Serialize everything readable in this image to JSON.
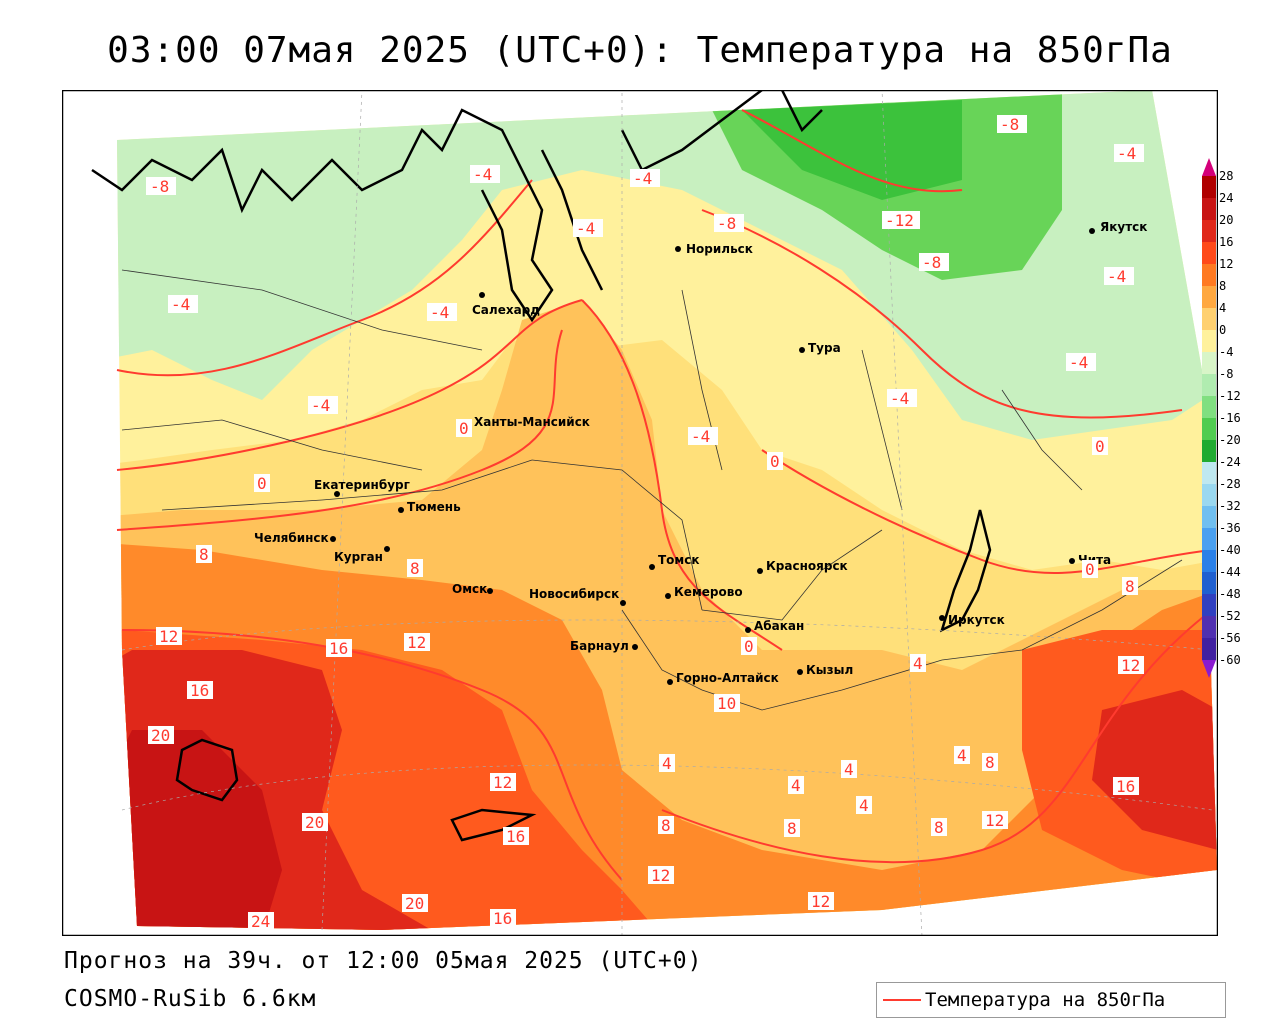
{
  "title": "03:00 07мая 2025 (UTC+0): Температура на 850гПа",
  "forecast_text": "Прогноз на 39ч. от 12:00 05мая 2025 (UTC+0)",
  "model_text": "COSMO-RuSib 6.6км",
  "legend": {
    "label": "Температура на 850гПа",
    "line_color": "#ff3b2f"
  },
  "colorbar": {
    "levels": [
      "28",
      "24",
      "20",
      "16",
      "12",
      "8",
      "4",
      "0",
      "-4",
      "-8",
      "-12",
      "-16",
      "-20",
      "-24",
      "-28",
      "-32",
      "-36",
      "-40",
      "-44",
      "-48",
      "-52",
      "-56",
      "-60"
    ],
    "top_arrow_color": "#d4007a",
    "bottom_arrow_color": "#8a1bd1"
  },
  "cities": [
    {
      "name": "Норильск"
    },
    {
      "name": "Якутск"
    },
    {
      "name": "Салехард"
    },
    {
      "name": "Тура"
    },
    {
      "name": "Ханты-Мансийск"
    },
    {
      "name": "Екатеринбург"
    },
    {
      "name": "Тюмень"
    },
    {
      "name": "Челябинск"
    },
    {
      "name": "Курган"
    },
    {
      "name": "Омск"
    },
    {
      "name": "Новосибирск"
    },
    {
      "name": "Томск"
    },
    {
      "name": "Кемерово"
    },
    {
      "name": "Красноярск"
    },
    {
      "name": "Абакан"
    },
    {
      "name": "Барнаул"
    },
    {
      "name": "Горно-Алтайск"
    },
    {
      "name": "Кызыл"
    },
    {
      "name": "Иркутск"
    },
    {
      "name": "Чита"
    }
  ],
  "contour_labels": [
    "-8",
    "-4",
    "-4",
    "-4",
    "-8",
    "-8",
    "-4",
    "-12",
    "-8",
    "-4",
    "-4",
    "-4",
    "-4",
    "-4",
    "-4",
    "0",
    "0",
    "0",
    "0",
    "-4",
    "0",
    "8",
    "8",
    "12",
    "16",
    "12",
    "16",
    "20",
    "20",
    "12",
    "16",
    "4",
    "8",
    "12",
    "20",
    "16",
    "24",
    "0",
    "4",
    "10",
    "4",
    "4",
    "4",
    "4",
    "8",
    "8",
    "8",
    "12",
    "16",
    "12",
    "12",
    "8"
  ]
}
